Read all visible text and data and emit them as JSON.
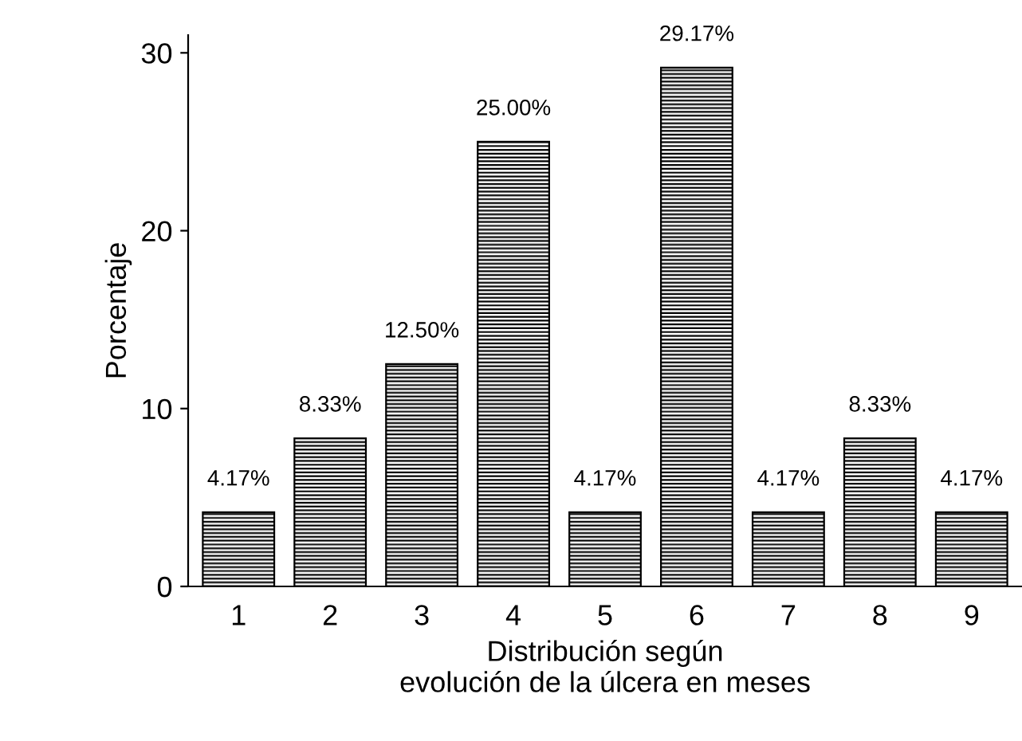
{
  "chart_data": {
    "type": "bar",
    "xlabel": "Distribución según\nevolución de la úlcera en meses",
    "ylabel": "Porcentaje",
    "categories": [
      "1",
      "2",
      "3",
      "4",
      "5",
      "6",
      "7",
      "8",
      "9"
    ],
    "values": [
      4.17,
      8.33,
      12.5,
      25.0,
      4.17,
      29.17,
      4.17,
      8.33,
      4.17
    ],
    "value_labels": [
      "4.17%",
      "8.33%",
      "12.50%",
      "25.00%",
      "4.17%",
      "29.17%",
      "4.17%",
      "8.33%",
      "4.17%"
    ],
    "color": "#000000",
    "ylim": [
      0,
      31
    ],
    "yticks": [
      0,
      10,
      20,
      30
    ],
    "grid": false,
    "legend": false
  }
}
